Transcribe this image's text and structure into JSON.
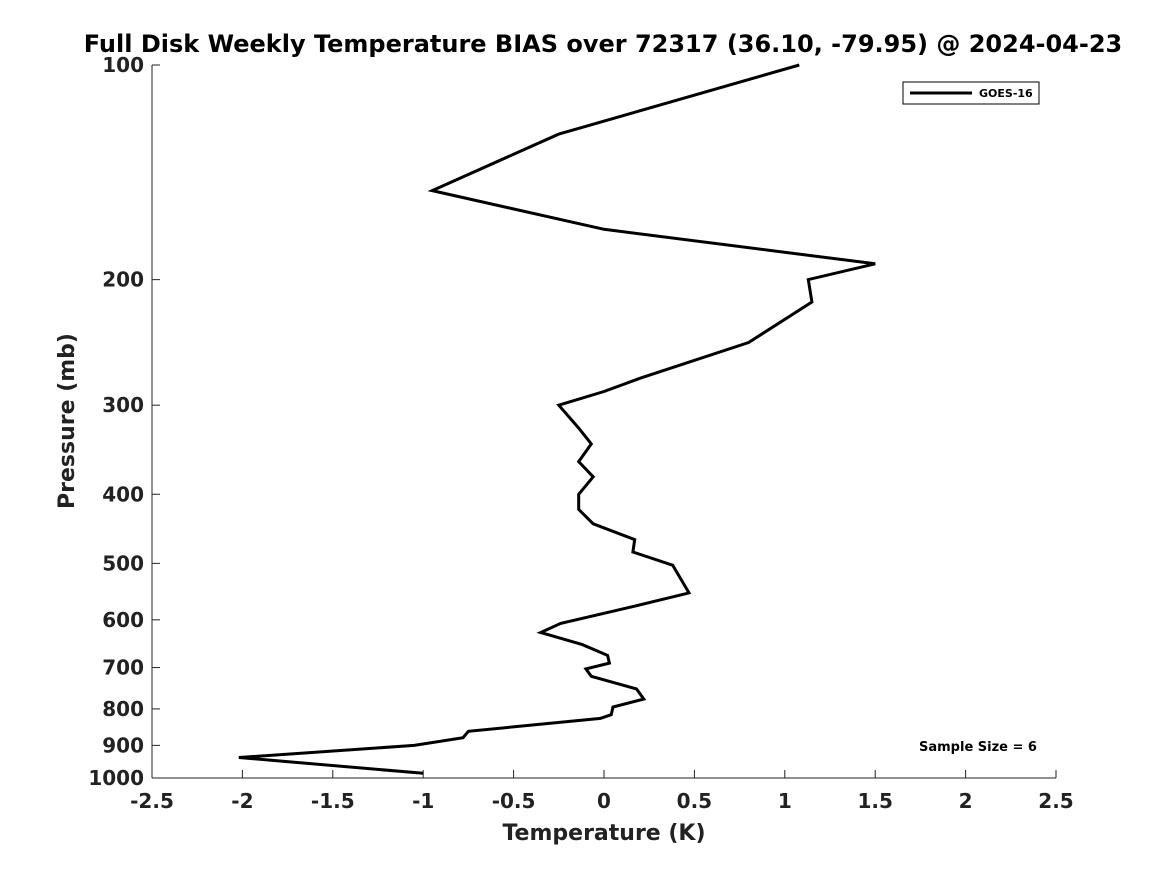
{
  "chart_data": {
    "type": "line",
    "title": "Full Disk Weekly Temperature BIAS over 72317 (36.10, -79.95) @ 2024-04-23",
    "xlabel": "Temperature (K)",
    "ylabel": "Pressure (mb)",
    "xlim": [
      -2.5,
      2.5
    ],
    "ylim": [
      100,
      1000
    ],
    "y_scale": "log",
    "y_reversed": true,
    "grid": false,
    "legend_position": "top-right",
    "x_ticks": [
      -2.5,
      -2,
      -1.5,
      -1,
      -0.5,
      0,
      0.5,
      1,
      1.5,
      2,
      2.5
    ],
    "x_tick_labels": [
      "-2.5",
      "-2",
      "-1.5",
      "-1",
      "-0.5",
      "0",
      "0.5",
      "1",
      "1.5",
      "2",
      "2.5"
    ],
    "y_ticks": [
      100,
      200,
      300,
      400,
      500,
      600,
      700,
      800,
      900,
      1000
    ],
    "y_tick_labels": [
      "100",
      "200",
      "300",
      "400",
      "500",
      "600",
      "700",
      "800",
      "900",
      "1000"
    ],
    "annotation": "Sample Size = 6",
    "series": [
      {
        "name": "GOES-16",
        "color": "#000000",
        "points": [
          {
            "x": 1.08,
            "p": 100
          },
          {
            "x": -0.25,
            "p": 125
          },
          {
            "x": -0.95,
            "p": 150
          },
          {
            "x": 0.0,
            "p": 170
          },
          {
            "x": 1.5,
            "p": 190
          },
          {
            "x": 1.13,
            "p": 200
          },
          {
            "x": 1.15,
            "p": 215
          },
          {
            "x": 0.8,
            "p": 245
          },
          {
            "x": 0.2,
            "p": 275
          },
          {
            "x": 0.0,
            "p": 287
          },
          {
            "x": -0.25,
            "p": 300
          },
          {
            "x": -0.14,
            "p": 323
          },
          {
            "x": -0.07,
            "p": 340
          },
          {
            "x": -0.14,
            "p": 360
          },
          {
            "x": -0.06,
            "p": 378
          },
          {
            "x": -0.14,
            "p": 400
          },
          {
            "x": -0.14,
            "p": 420
          },
          {
            "x": -0.06,
            "p": 440
          },
          {
            "x": 0.17,
            "p": 463
          },
          {
            "x": 0.16,
            "p": 482
          },
          {
            "x": 0.38,
            "p": 503
          },
          {
            "x": 0.47,
            "p": 550
          },
          {
            "x": 0.16,
            "p": 575
          },
          {
            "x": -0.24,
            "p": 607
          },
          {
            "x": -0.35,
            "p": 625
          },
          {
            "x": -0.12,
            "p": 650
          },
          {
            "x": 0.02,
            "p": 673
          },
          {
            "x": 0.03,
            "p": 690
          },
          {
            "x": -0.1,
            "p": 703
          },
          {
            "x": -0.07,
            "p": 720
          },
          {
            "x": 0.18,
            "p": 750
          },
          {
            "x": 0.22,
            "p": 775
          },
          {
            "x": 0.05,
            "p": 795
          },
          {
            "x": 0.04,
            "p": 815
          },
          {
            "x": -0.02,
            "p": 825
          },
          {
            "x": -0.75,
            "p": 860
          },
          {
            "x": -0.78,
            "p": 878
          },
          {
            "x": -1.05,
            "p": 900
          },
          {
            "x": -2.02,
            "p": 936
          },
          {
            "x": -1.0,
            "p": 985
          }
        ]
      }
    ]
  }
}
